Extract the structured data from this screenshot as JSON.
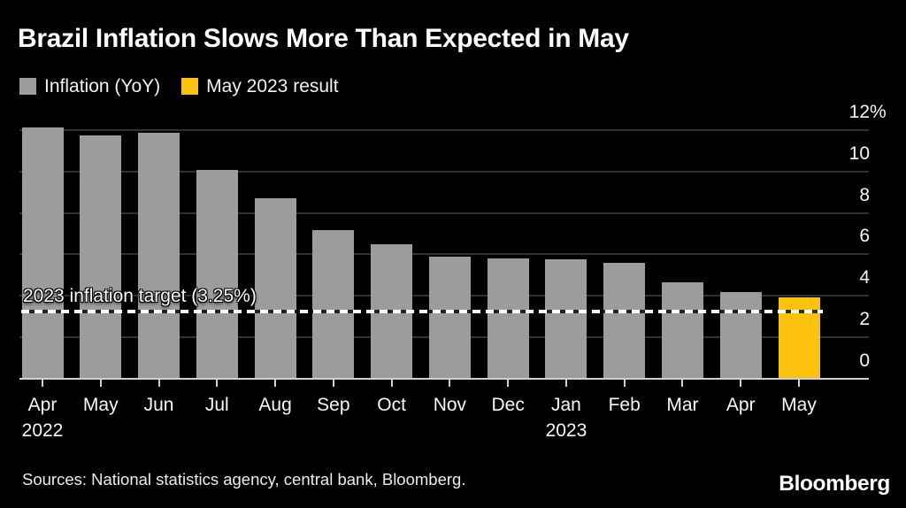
{
  "title": "Brazil Inflation Slows More Than Expected in May",
  "legend": [
    {
      "label": "Inflation (YoY)",
      "color": "#9c9c9c"
    },
    {
      "label": "May 2023 result",
      "color": "#fdc20d"
    }
  ],
  "chart_data": {
    "type": "bar",
    "title": "Brazil Inflation Slows More Than Expected in May",
    "unit": "%",
    "categories": [
      {
        "label": "Apr",
        "sub": "2022"
      },
      {
        "label": "May"
      },
      {
        "label": "Jun"
      },
      {
        "label": "Jul"
      },
      {
        "label": "Aug"
      },
      {
        "label": "Sep"
      },
      {
        "label": "Oct"
      },
      {
        "label": "Nov"
      },
      {
        "label": "Dec"
      },
      {
        "label": "Jan",
        "sub": "2023"
      },
      {
        "label": "Feb"
      },
      {
        "label": "Mar"
      },
      {
        "label": "Apr"
      },
      {
        "label": "May"
      }
    ],
    "values": [
      12.13,
      11.73,
      11.89,
      10.07,
      8.73,
      7.17,
      6.47,
      5.9,
      5.79,
      5.77,
      5.6,
      4.65,
      4.18,
      3.94
    ],
    "series_name": "Inflation (YoY)",
    "highlight_index": 13,
    "highlight_name": "May 2023 result",
    "bar_color": "#9c9c9c",
    "highlight_color": "#fdc20d",
    "ylim": [
      0,
      12.8
    ],
    "yticks": [
      {
        "v": 0,
        "t": "0"
      },
      {
        "v": 2,
        "t": "2"
      },
      {
        "v": 4,
        "t": "4"
      },
      {
        "v": 6,
        "t": "6"
      },
      {
        "v": 8,
        "t": "8"
      },
      {
        "v": 10,
        "t": "10"
      },
      {
        "v": 12,
        "t": "12",
        "suffix": "%"
      }
    ],
    "target_line": {
      "value": 3.25,
      "label": "2023 inflation target (3.25%)"
    },
    "grid": "horizontal",
    "legend_position": "top-left",
    "background": "#000000"
  },
  "footer": {
    "sources": "Sources: National statistics agency, central bank, Bloomberg.",
    "brand": "Bloomberg"
  }
}
